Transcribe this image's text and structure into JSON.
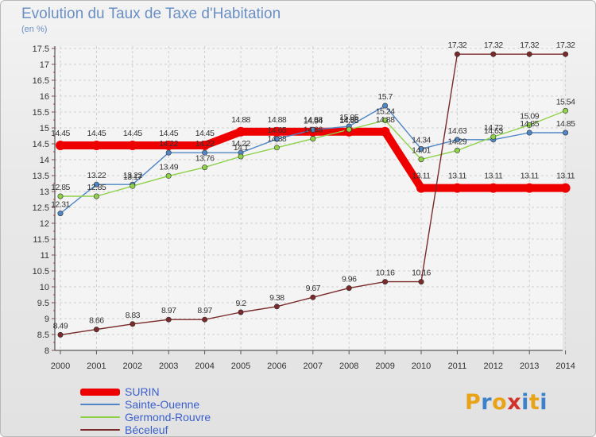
{
  "title": "Evolution du Taux de Taxe d'Habitation",
  "subtitle": "(en %)",
  "logo": {
    "text": "Proxiti",
    "colors": [
      "#e8a319",
      "#3d82c8",
      "#e8a319",
      "#d3312b",
      "#3d82c8",
      "#e8a319",
      "#3d82c8"
    ]
  },
  "chart_data": {
    "type": "line",
    "x": [
      "2000",
      "2001",
      "2002",
      "2003",
      "2004",
      "2005",
      "2006",
      "2007",
      "2008",
      "2009",
      "2010",
      "2011",
      "2012",
      "2013",
      "2014"
    ],
    "ylim": [
      8,
      17.5
    ],
    "yticks": [
      "8",
      "8.5",
      "9",
      "9.5",
      "10",
      "10.5",
      "11",
      "11.5",
      "12",
      "12.5",
      "13",
      "13.5",
      "14",
      "14.5",
      "15",
      "15.5",
      "16",
      "16.5",
      "17",
      "17.5"
    ],
    "grid": true,
    "legend_position": "bottom-left",
    "series": [
      {
        "name": "SURIN",
        "color": "#ee0000",
        "values": [
          14.45,
          14.45,
          14.45,
          14.45,
          14.45,
          14.88,
          14.88,
          14.88,
          14.88,
          14.88,
          13.11,
          13.11,
          13.11,
          13.11,
          13.11
        ],
        "labels": [
          "14.45",
          "14.45",
          "14.45",
          "14.45",
          "14.45",
          "14.88",
          "14.88",
          "14.88",
          "14.88",
          "14.88",
          "13.11",
          "13.11",
          "13.11",
          "13.11",
          "13.11"
        ]
      },
      {
        "name": "Sainte-Ouenne",
        "color": "#4f87c6",
        "values": [
          12.31,
          13.22,
          13.22,
          14.22,
          14.22,
          14.22,
          14.65,
          14.94,
          15.05,
          15.7,
          14.34,
          14.63,
          14.63,
          14.85,
          14.85
        ],
        "labels": [
          "12.31",
          "13.22",
          "13.22",
          "14.22",
          "14.22",
          "14.22",
          "14.65",
          "14.94",
          "15.05",
          "15.7",
          "14.34",
          "14.63",
          "14.63",
          "14.85",
          "14.85"
        ]
      },
      {
        "name": "Germond-Rouvre",
        "color": "#8fd24a",
        "values": [
          12.85,
          12.85,
          13.17,
          13.49,
          13.76,
          14.1,
          14.38,
          14.66,
          14.95,
          15.24,
          14.01,
          14.29,
          14.72,
          15.09,
          15.54
        ],
        "labels": [
          "12.85",
          "12.85",
          "13.17",
          "13.49",
          "13.76",
          "14.1",
          "14.38",
          "14.66",
          "14.95",
          "15.24",
          "14.01",
          "14.29",
          "14.72",
          "15.09",
          "15.54"
        ]
      },
      {
        "name": "Béceleuf",
        "color": "#7a2a2a",
        "values": [
          8.49,
          8.66,
          8.83,
          8.97,
          8.97,
          9.2,
          9.38,
          9.67,
          9.96,
          10.16,
          10.16,
          17.32,
          17.32,
          17.32,
          17.32
        ],
        "labels": [
          "8.49",
          "8.66",
          "8.83",
          "8.97",
          "8.97",
          "9.2",
          "9.38",
          "9.67",
          "9.96",
          "10.16",
          "10.16",
          "17.32",
          "17.32",
          "17.32",
          "17.32"
        ]
      }
    ]
  }
}
